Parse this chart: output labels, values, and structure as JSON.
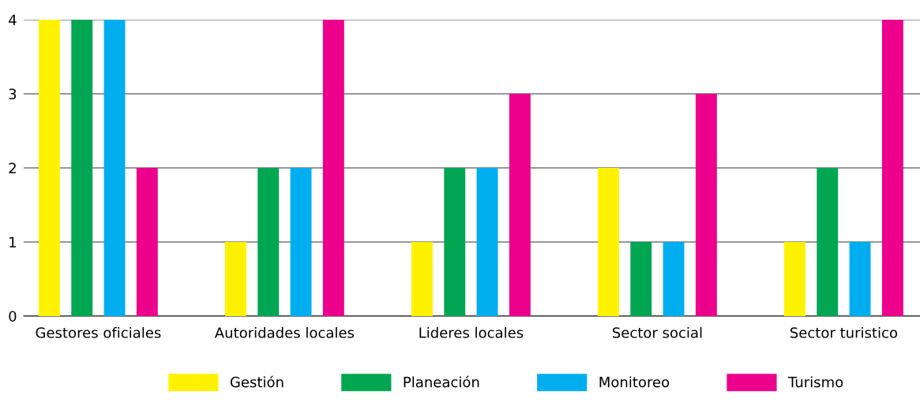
{
  "chart_data": {
    "type": "bar",
    "categories": [
      "Gestores oficiales",
      "Autoridades locales",
      "Lideres locales",
      "Sector social",
      "Sector turistico"
    ],
    "series": [
      {
        "name": "Gestión",
        "color": "#fff200",
        "values": [
          4,
          1,
          1,
          2,
          1
        ]
      },
      {
        "name": "Planeación",
        "color": "#00a651",
        "values": [
          4,
          2,
          2,
          1,
          2
        ]
      },
      {
        "name": "Monitoreo",
        "color": "#00aeef",
        "values": [
          4,
          2,
          2,
          1,
          1
        ]
      },
      {
        "name": "Turismo",
        "color": "#ec008c",
        "values": [
          2,
          4,
          3,
          3,
          4
        ]
      }
    ],
    "ylim": [
      0,
      4
    ],
    "yticks": [
      0,
      1,
      2,
      3,
      4
    ],
    "grid": "y",
    "legend": "bottom"
  }
}
